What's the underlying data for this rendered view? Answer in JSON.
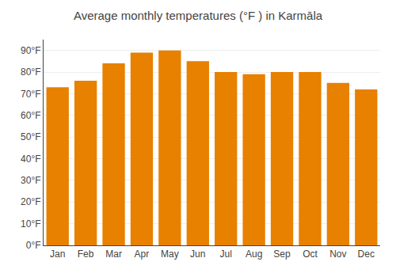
{
  "chart_data": {
    "type": "bar",
    "title": "Average monthly temperatures (°F ) in Karmāla",
    "categories": [
      "Jan",
      "Feb",
      "Mar",
      "Apr",
      "May",
      "Jun",
      "Jul",
      "Aug",
      "Sep",
      "Oct",
      "Nov",
      "Dec"
    ],
    "values": [
      73,
      76,
      84,
      89,
      90,
      85,
      80,
      79,
      80,
      80,
      75,
      72
    ],
    "color": "#E88000",
    "ylim": [
      0,
      95
    ],
    "yticks": [
      {
        "value": 0,
        "label": "0°F"
      },
      {
        "value": 10,
        "label": "10°F"
      },
      {
        "value": 20,
        "label": "20°F"
      },
      {
        "value": 30,
        "label": "30°F"
      },
      {
        "value": 40,
        "label": "40°F"
      },
      {
        "value": 50,
        "label": "50°F"
      },
      {
        "value": 60,
        "label": "60°F"
      },
      {
        "value": 70,
        "label": "70°F"
      },
      {
        "value": 80,
        "label": "80°F"
      },
      {
        "value": 90,
        "label": "90°F"
      }
    ],
    "grid": true
  }
}
